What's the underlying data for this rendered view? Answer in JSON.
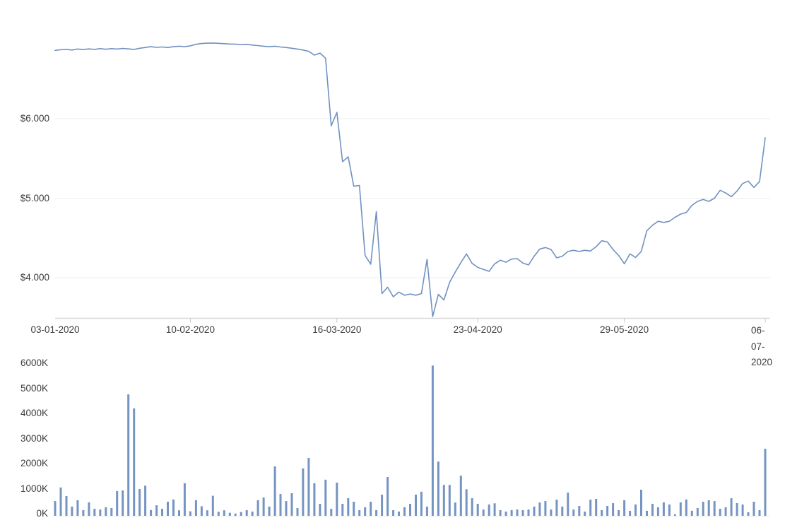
{
  "page": {
    "background": "#ffffff",
    "description": "price and volume time-series chart panel"
  },
  "colors": {
    "line": "#7191c1",
    "bar": "#7494c2",
    "gridline": "#eeeeee",
    "axis": "#d9d9d9",
    "tick_mark": "#c9c9c9",
    "label_text": "#3d3d3d"
  },
  "chart_data": [
    {
      "type": "line",
      "name": "price",
      "title": "",
      "legend": "none",
      "grid": "horizontal-only",
      "x_range": [
        "03-01-2020",
        "06-07-2020"
      ],
      "x_tick_labels": [
        "03-01-2020",
        "10-02-2020",
        "16-03-2020",
        "23-04-2020",
        "29-05-2020",
        "06-07-2020"
      ],
      "x_tick_indices": [
        0,
        24,
        50,
        75,
        101,
        126
      ],
      "y_ticks": [
        {
          "label": "$6.000",
          "value": 6000
        },
        {
          "label": "$5.000",
          "value": 5000
        },
        {
          "label": "$4.000",
          "value": 4000
        }
      ],
      "ylim": [
        3490,
        7000
      ],
      "values": [
        6860,
        6868,
        6872,
        6864,
        6876,
        6870,
        6878,
        6872,
        6882,
        6874,
        6882,
        6876,
        6884,
        6878,
        6872,
        6886,
        6896,
        6906,
        6898,
        6902,
        6896,
        6906,
        6912,
        6906,
        6916,
        6936,
        6946,
        6950,
        6952,
        6948,
        6944,
        6940,
        6938,
        6932,
        6936,
        6926,
        6920,
        6912,
        6906,
        6912,
        6902,
        6896,
        6886,
        6876,
        6864,
        6848,
        6800,
        6826,
        6760,
        5911,
        6080,
        5460,
        5520,
        5150,
        5160,
        4280,
        4170,
        4830,
        3800,
        3880,
        3760,
        3820,
        3780,
        3795,
        3780,
        3800,
        4230,
        3510,
        3790,
        3720,
        3940,
        4070,
        4190,
        4300,
        4180,
        4130,
        4105,
        4080,
        4175,
        4220,
        4195,
        4235,
        4240,
        4185,
        4160,
        4270,
        4360,
        4380,
        4355,
        4250,
        4270,
        4330,
        4345,
        4330,
        4345,
        4335,
        4390,
        4465,
        4450,
        4355,
        4280,
        4175,
        4300,
        4255,
        4330,
        4590,
        4660,
        4710,
        4695,
        4710,
        4760,
        4800,
        4820,
        4910,
        4960,
        4985,
        4960,
        5000,
        5100,
        5065,
        5020,
        5090,
        5185,
        5215,
        5135,
        5210,
        5760
      ]
    },
    {
      "type": "bar",
      "name": "volume",
      "title": "",
      "legend": "none",
      "grid": "none",
      "unit": "K",
      "y_ticks": [
        {
          "label": "6000K",
          "value": 6000
        },
        {
          "label": "5000K",
          "value": 5000
        },
        {
          "label": "4000K",
          "value": 4000
        },
        {
          "label": "3000K",
          "value": 3000
        },
        {
          "label": "2000K",
          "value": 2000
        },
        {
          "label": "1000K",
          "value": 1000
        },
        {
          "label": "0K",
          "value": 0
        }
      ],
      "ylim": [
        0,
        6000
      ],
      "values": [
        590,
        1130,
        790,
        370,
        620,
        225,
        535,
        280,
        250,
        340,
        310,
        985,
        1010,
        4840,
        4280,
        1070,
        1200,
        230,
        420,
        280,
        560,
        650,
        220,
        1300,
        180,
        620,
        380,
        220,
        800,
        160,
        220,
        120,
        90,
        150,
        225,
        170,
        620,
        730,
        370,
        1970,
        870,
        590,
        900,
        310,
        1890,
        2310,
        1300,
        480,
        1440,
        280,
        1320,
        480,
        700,
        560,
        225,
        340,
        560,
        225,
        845,
        1550,
        225,
        170,
        340,
        480,
        845,
        960,
        370,
        5990,
        2160,
        1230,
        1230,
        530,
        1600,
        1060,
        700,
        480,
        250,
        450,
        500,
        225,
        170,
        225,
        250,
        225,
        250,
        370,
        530,
        590,
        250,
        645,
        370,
        925,
        250,
        395,
        170,
        645,
        675,
        225,
        395,
        505,
        225,
        620,
        200,
        450,
        1040,
        200,
        480,
        340,
        535,
        450,
        60,
        535,
        650,
        200,
        310,
        560,
        620,
        590,
        280,
        340,
        700,
        510,
        450,
        140,
        560,
        225,
        2670
      ]
    }
  ]
}
